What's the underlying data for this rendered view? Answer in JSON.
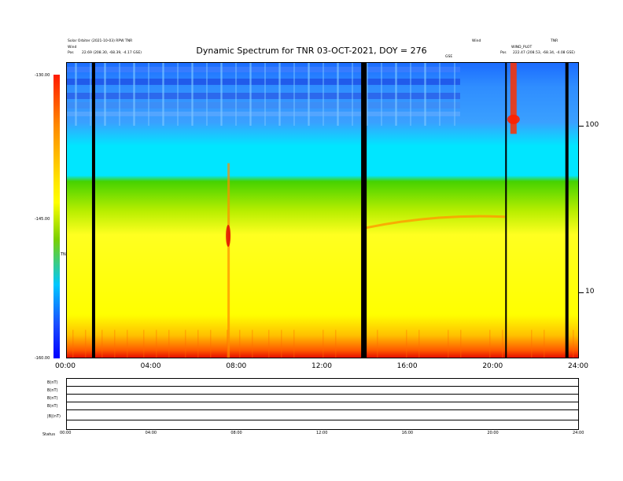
{
  "header": {
    "left_lines": [
      "Solar Orbiter (2021-10-03) RPW TNR",
      "Wind",
      "Pos"
    ],
    "left_pos": "22.69 (208.30, -68.39, -4.17 GSE)",
    "right_top_a": "Wind",
    "right_top_b": "TNR",
    "right_pos_label": "Pos",
    "right_pos": "222.47 (208.53, -68.34, -4.08 GSE)",
    "right_tiny": "WIND_PLOT",
    "marker_label": "GSE"
  },
  "chart_data": {
    "type": "heatmap",
    "title": "Dynamic Spectrum for TNR 03-OCT-2021, DOY = 276",
    "x_ticks": [
      "00:00",
      "04:00",
      "08:00",
      "12:00",
      "16:00",
      "20:00",
      "24:00"
    ],
    "x_range_hours": [
      0,
      24
    ],
    "y_scale": "log",
    "y_ticks_right": [
      "100",
      "10"
    ],
    "y_range_khz": [
      4,
      240
    ],
    "colorbar": {
      "label": "TNR",
      "ticks": [
        "-130.00",
        "-145.00",
        "-160.00"
      ],
      "range": [
        -160,
        -130
      ]
    },
    "data_gaps_hours": [
      1.25,
      13.9,
      20.55,
      23.4
    ],
    "features": [
      {
        "name": "type III burst",
        "hour": 7.55
      },
      {
        "name": "type III burst",
        "hour": 20.9
      },
      {
        "name": "emission band",
        "hours": [
          14.0,
          20.5
        ],
        "freq_khz": 28
      }
    ],
    "lower_panels": {
      "row_labels": [
        "B(nT)",
        "B(nT)",
        "B(nT)",
        "B(nT)",
        "|B|(nT)"
      ],
      "bottom_label": "Status",
      "x_ticks": [
        "00:00",
        "04:00",
        "08:00",
        "12:00",
        "16:00",
        "20:00",
        "24:00"
      ]
    }
  }
}
